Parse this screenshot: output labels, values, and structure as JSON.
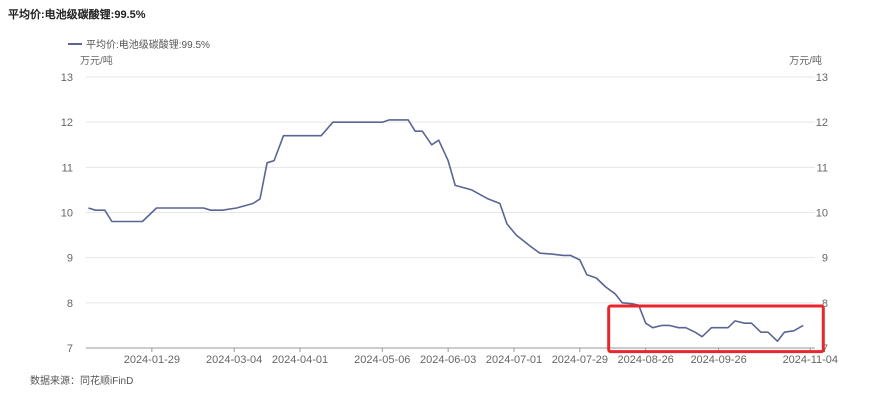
{
  "title": "平均价:电池级碳酸锂:99.5%",
  "source": "数据来源：同花顺iFinD",
  "chart_data": {
    "type": "line",
    "title": "平均价:电池级碳酸锂:99.5%",
    "unit_left": "万元/吨",
    "unit_right": "万元/吨",
    "ylim": [
      7,
      13
    ],
    "yticks": [
      7,
      8,
      9,
      10,
      11,
      12,
      13
    ],
    "xlabels": [
      "2024-01-29",
      "2024-03-04",
      "2024-04-01",
      "2024-05-06",
      "2024-06-03",
      "2024-07-01",
      "2024-07-29",
      "2024-08-26",
      "2024-09-26",
      "2024-11-04"
    ],
    "grid": true,
    "legend_position": "top-left",
    "highlight": {
      "from": "2024-08-26",
      "to": "2024-11-04",
      "color": "#e8262d"
    },
    "series": [
      {
        "name": "平均价:电池级碳酸锂:99.5%",
        "color": "#5b6595",
        "points": [
          [
            "2024-01-02",
            10.1
          ],
          [
            "2024-01-05",
            10.05
          ],
          [
            "2024-01-09",
            10.05
          ],
          [
            "2024-01-12",
            9.8
          ],
          [
            "2024-01-18",
            9.8
          ],
          [
            "2024-01-25",
            9.8
          ],
          [
            "2024-01-31",
            10.1
          ],
          [
            "2024-02-07",
            10.1
          ],
          [
            "2024-02-20",
            10.1
          ],
          [
            "2024-02-23",
            10.05
          ],
          [
            "2024-02-28",
            10.05
          ],
          [
            "2024-03-05",
            10.1
          ],
          [
            "2024-03-12",
            10.2
          ],
          [
            "2024-03-15",
            10.3
          ],
          [
            "2024-03-18",
            11.1
          ],
          [
            "2024-03-21",
            11.15
          ],
          [
            "2024-03-25",
            11.7
          ],
          [
            "2024-04-01",
            11.7
          ],
          [
            "2024-04-08",
            11.7
          ],
          [
            "2024-04-10",
            11.7
          ],
          [
            "2024-04-15",
            12.0
          ],
          [
            "2024-04-22",
            12.0
          ],
          [
            "2024-04-29",
            12.0
          ],
          [
            "2024-05-06",
            12.0
          ],
          [
            "2024-05-09",
            12.05
          ],
          [
            "2024-05-13",
            12.05
          ],
          [
            "2024-05-17",
            12.05
          ],
          [
            "2024-05-20",
            11.8
          ],
          [
            "2024-05-23",
            11.8
          ],
          [
            "2024-05-27",
            11.5
          ],
          [
            "2024-05-30",
            11.6
          ],
          [
            "2024-06-03",
            11.15
          ],
          [
            "2024-06-06",
            10.6
          ],
          [
            "2024-06-13",
            10.5
          ],
          [
            "2024-06-20",
            10.3
          ],
          [
            "2024-06-25",
            10.2
          ],
          [
            "2024-06-28",
            9.75
          ],
          [
            "2024-07-02",
            9.5
          ],
          [
            "2024-07-08",
            9.25
          ],
          [
            "2024-07-12",
            9.1
          ],
          [
            "2024-07-17",
            9.08
          ],
          [
            "2024-07-22",
            9.05
          ],
          [
            "2024-07-25",
            9.05
          ],
          [
            "2024-07-29",
            8.95
          ],
          [
            "2024-08-01",
            8.62
          ],
          [
            "2024-08-05",
            8.55
          ],
          [
            "2024-08-09",
            8.35
          ],
          [
            "2024-08-13",
            8.2
          ],
          [
            "2024-08-16",
            8.0
          ],
          [
            "2024-08-20",
            7.98
          ],
          [
            "2024-08-23",
            7.95
          ],
          [
            "2024-08-26",
            7.55
          ],
          [
            "2024-08-29",
            7.45
          ],
          [
            "2024-09-02",
            7.5
          ],
          [
            "2024-09-05",
            7.5
          ],
          [
            "2024-09-09",
            7.45
          ],
          [
            "2024-09-12",
            7.45
          ],
          [
            "2024-09-16",
            7.35
          ],
          [
            "2024-09-19",
            7.25
          ],
          [
            "2024-09-23",
            7.45
          ],
          [
            "2024-09-26",
            7.45
          ],
          [
            "2024-09-30",
            7.45
          ],
          [
            "2024-10-03",
            7.6
          ],
          [
            "2024-10-07",
            7.55
          ],
          [
            "2024-10-10",
            7.55
          ],
          [
            "2024-10-14",
            7.35
          ],
          [
            "2024-10-17",
            7.35
          ],
          [
            "2024-10-21",
            7.15
          ],
          [
            "2024-10-24",
            7.35
          ],
          [
            "2024-10-28",
            7.38
          ],
          [
            "2024-11-01",
            7.5
          ]
        ]
      }
    ]
  }
}
